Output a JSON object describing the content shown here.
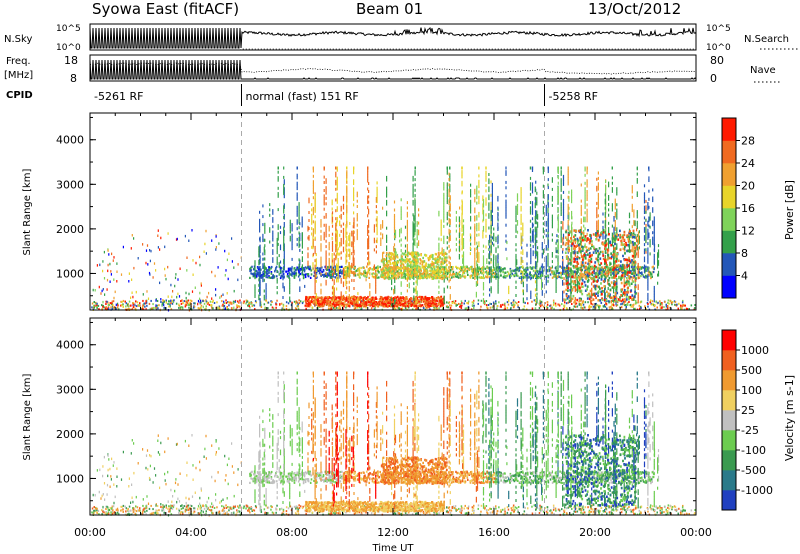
{
  "header": {
    "station": "Syowa East (fitACF)",
    "beam": "Beam 01",
    "date": "13/Oct/2012"
  },
  "ancillary": {
    "nsky_label": "N.Sky",
    "nsearch_label": "N.Search",
    "freq_label": "Freq.",
    "freq_unit": "[MHz]",
    "nave_label": "Nave",
    "cpid_label": "CPID",
    "nsky_ticks": [
      "10^5",
      "10^0"
    ],
    "nsearch_ticks": [
      "10^5",
      "10^0"
    ],
    "freq_ticks": [
      "18",
      "8"
    ],
    "nave_ticks": [
      "80",
      "0"
    ]
  },
  "cpid_segments": [
    {
      "start": 0,
      "end": 6,
      "label": "-5261 RF"
    },
    {
      "start": 6,
      "end": 18,
      "label": "normal (fast) 151 RF"
    },
    {
      "start": 18,
      "end": 24,
      "label": "-5258 RF"
    }
  ],
  "chart_data": [
    {
      "type": "heatmap",
      "name": "power",
      "xlabel": "Time UT",
      "ylabel": "Slant Range [km]",
      "xlim": [
        0,
        24
      ],
      "ylim": [
        180,
        4600
      ],
      "x_ticks": [
        "00:00",
        "04:00",
        "08:00",
        "12:00",
        "16:00",
        "20:00",
        "00:00"
      ],
      "y_ticks": [
        1000,
        2000,
        3000,
        4000
      ],
      "colorbar": {
        "label": "Power [dB]",
        "range": [
          0,
          32
        ],
        "ticks": [
          "4",
          "8",
          "12",
          "16",
          "20",
          "24",
          "28"
        ],
        "colors": [
          "#0000ff",
          "#2357b8",
          "#33a04a",
          "#7fd35a",
          "#e8d42a",
          "#f0a030",
          "#f06a20",
          "#ff1a00"
        ]
      }
    },
    {
      "type": "heatmap",
      "name": "velocity",
      "xlabel": "Time UT",
      "ylabel": "Slant Range [km]",
      "xlim": [
        0,
        24
      ],
      "ylim": [
        180,
        4600
      ],
      "x_ticks": [
        "00:00",
        "04:00",
        "08:00",
        "12:00",
        "16:00",
        "20:00",
        "00:00"
      ],
      "y_ticks": [
        1000,
        2000,
        3000,
        4000
      ],
      "colorbar": {
        "label": "Velocity [m s-1]",
        "ticks": [
          "1000",
          "500",
          "100",
          "25",
          "-25",
          "-100",
          "-500",
          "-1000"
        ],
        "colors": [
          "#2040c0",
          "#2a7a8a",
          "#3a9a50",
          "#6ccc50",
          "#c0c0c0",
          "#f0d060",
          "#f09a30",
          "#f06020",
          "#ff0000"
        ]
      }
    }
  ]
}
